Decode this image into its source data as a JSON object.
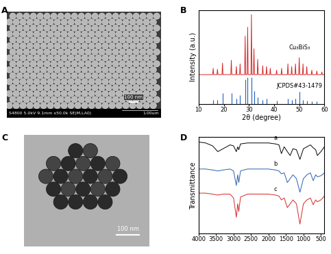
{
  "chart_data": [
    {
      "type": "image",
      "title": "A",
      "annotations": [
        "100 nm",
        "S4800 5.0kV 9.1mm x50.0k SE(M,LA0)",
        "1.00um"
      ]
    },
    {
      "type": "line",
      "title": "B",
      "xlabel": "2θ (degree)",
      "ylabel": "Intensity (a.u.)",
      "xlim": [
        10,
        60
      ],
      "xticks": [
        10,
        20,
        30,
        40,
        50,
        60
      ],
      "ylim": [
        0,
        1.05
      ],
      "tick_labels": "x",
      "series": [
        {
          "name": "Cu₃BiS₃",
          "color": "#d62728",
          "type": "line",
          "x": [
            10,
            15.6,
            15.8,
            16.0,
            17.3,
            17.5,
            17.7,
            19.3,
            19.5,
            19.7,
            22.8,
            23.0,
            23.2,
            24.8,
            25.0,
            25.2,
            26.3,
            26.5,
            26.7,
            28.3,
            28.5,
            28.7,
            29.3,
            29.5,
            29.7,
            30.8,
            31.0,
            31.2,
            31.8,
            32.0,
            32.2,
            33.3,
            33.5,
            33.7,
            35.3,
            35.5,
            35.7,
            36.8,
            37.0,
            37.2,
            38.3,
            38.5,
            38.7,
            40.8,
            41.0,
            41.2,
            42.8,
            43.0,
            43.2,
            45.3,
            45.5,
            45.7,
            46.8,
            47.0,
            47.2,
            48.3,
            48.5,
            48.7,
            49.8,
            50.0,
            50.2,
            51.3,
            51.5,
            51.7,
            52.8,
            53.0,
            53.2,
            54.8,
            55.0,
            55.2,
            56.8,
            57.0,
            57.2,
            58.8,
            59.0,
            59.2,
            60
          ],
          "values": [
            0.33,
            0.33,
            0.4,
            0.33,
            0.33,
            0.39,
            0.33,
            0.33,
            0.46,
            0.33,
            0.33,
            0.49,
            0.33,
            0.33,
            0.42,
            0.33,
            0.33,
            0.45,
            0.33,
            0.33,
            0.76,
            0.33,
            0.33,
            0.86,
            0.33,
            0.33,
            1.0,
            0.33,
            0.33,
            0.62,
            0.33,
            0.33,
            0.5,
            0.33,
            0.33,
            0.43,
            0.33,
            0.33,
            0.42,
            0.33,
            0.33,
            0.4,
            0.33,
            0.33,
            0.38,
            0.33,
            0.33,
            0.4,
            0.33,
            0.33,
            0.45,
            0.33,
            0.33,
            0.42,
            0.33,
            0.33,
            0.45,
            0.33,
            0.33,
            0.52,
            0.33,
            0.33,
            0.45,
            0.33,
            0.33,
            0.42,
            0.33,
            0.33,
            0.38,
            0.33,
            0.33,
            0.37,
            0.33,
            0.33,
            0.36,
            0.33,
            0.33
          ]
        },
        {
          "name": "JCPDS#43-1479",
          "color": "#1f5fbf",
          "type": "sticks",
          "x": [
            15.8,
            17.5,
            19.5,
            23.0,
            25.0,
            26.5,
            28.5,
            29.5,
            31.0,
            32.0,
            33.5,
            35.5,
            37.0,
            41.0,
            45.5,
            47.0,
            48.5,
            50.0,
            51.5,
            53.0,
            55.0,
            57.0
          ],
          "values": [
            0.05,
            0.05,
            0.12,
            0.12,
            0.06,
            0.1,
            0.28,
            0.3,
            0.3,
            0.15,
            0.08,
            0.05,
            0.06,
            0.04,
            0.06,
            0.05,
            0.06,
            0.14,
            0.05,
            0.04,
            0.03,
            0.03
          ]
        }
      ]
    },
    {
      "type": "image",
      "title": "C",
      "annotations": [
        "100 nm"
      ]
    },
    {
      "type": "line",
      "title": "D",
      "ylabel": "Transmittance",
      "xlim": [
        4000,
        400
      ],
      "xticks": [
        4000,
        3500,
        3000,
        2500,
        2000,
        1500,
        1000,
        500
      ],
      "ylim": [
        0.05,
        1.05
      ],
      "tick_labels": "x",
      "x": [
        4000,
        3800,
        3600,
        3450,
        3300,
        3100,
        3000,
        2920,
        2880,
        2850,
        2800,
        2600,
        2400,
        2200,
        2000,
        1800,
        1700,
        1630,
        1550,
        1460,
        1380,
        1300,
        1200,
        1100,
        1000,
        900,
        800,
        720,
        650,
        600,
        500,
        400
      ],
      "series": [
        {
          "name": "a",
          "color": "#000000",
          "values": [
            1.0,
            0.99,
            0.96,
            0.9,
            0.93,
            0.97,
            0.96,
            0.9,
            0.95,
            0.92,
            0.98,
            0.99,
            0.99,
            0.99,
            0.99,
            0.98,
            0.97,
            0.88,
            0.95,
            0.9,
            0.86,
            0.93,
            0.92,
            0.82,
            0.93,
            0.95,
            0.97,
            0.94,
            0.92,
            0.86,
            0.9,
            0.95
          ]
        },
        {
          "name": "b",
          "color": "#2b5fa8",
          "values": [
            0.72,
            0.72,
            0.71,
            0.7,
            0.71,
            0.72,
            0.7,
            0.55,
            0.66,
            0.58,
            0.7,
            0.72,
            0.72,
            0.72,
            0.72,
            0.71,
            0.7,
            0.67,
            0.68,
            0.58,
            0.62,
            0.66,
            0.62,
            0.48,
            0.62,
            0.66,
            0.68,
            0.6,
            0.66,
            0.64,
            0.65,
            0.68
          ]
        },
        {
          "name": "c",
          "color": "#d62728",
          "values": [
            0.47,
            0.47,
            0.46,
            0.45,
            0.46,
            0.46,
            0.42,
            0.22,
            0.36,
            0.28,
            0.43,
            0.46,
            0.46,
            0.46,
            0.46,
            0.45,
            0.44,
            0.4,
            0.42,
            0.32,
            0.36,
            0.4,
            0.36,
            0.15,
            0.36,
            0.4,
            0.42,
            0.35,
            0.4,
            0.38,
            0.4,
            0.44
          ]
        }
      ]
    }
  ]
}
